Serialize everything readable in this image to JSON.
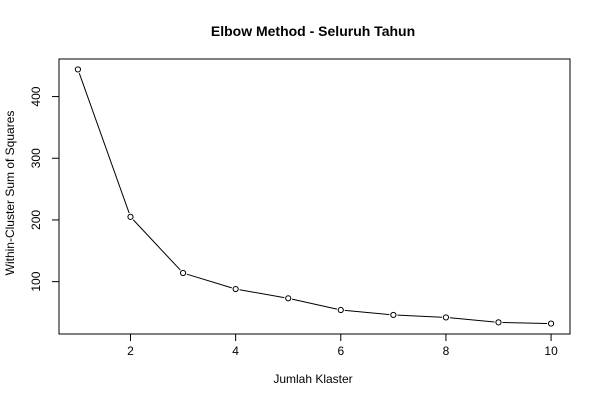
{
  "chart_data": {
    "type": "line",
    "title": "Elbow Method - Seluruh Tahun",
    "xlabel": "Jumlah Klaster",
    "ylabel": "Within-Cluster Sum of Squares",
    "x": [
      1,
      2,
      3,
      4,
      5,
      6,
      7,
      8,
      9,
      10
    ],
    "series": [
      {
        "values": [
          444,
          205,
          114,
          88,
          73,
          54,
          46,
          42,
          34,
          32
        ]
      }
    ],
    "xlim": [
      0.64,
      10.36
    ],
    "ylim": [
      15.12,
      460.88
    ],
    "x_ticks": [
      2,
      4,
      6,
      8,
      10
    ],
    "y_ticks": [
      100,
      200,
      300,
      400
    ],
    "x_tick_labels": [
      "2",
      "4",
      "6",
      "8",
      "10"
    ],
    "y_tick_labels": [
      "100",
      "200",
      "300",
      "400"
    ],
    "grid": false,
    "legend": "none",
    "line_color": "#000000",
    "marker": "open-circle"
  }
}
